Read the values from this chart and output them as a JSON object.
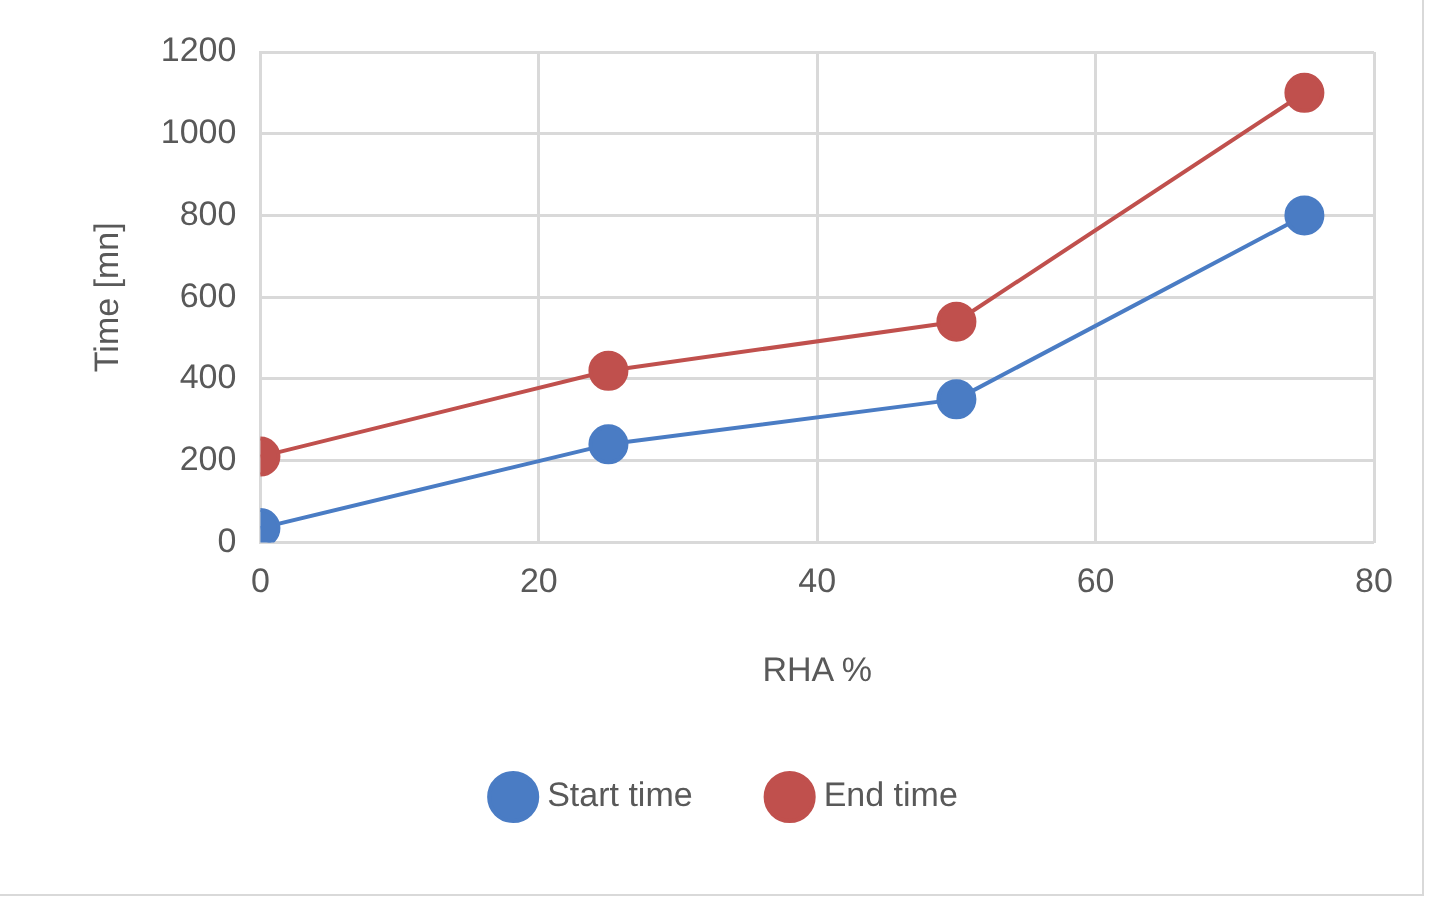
{
  "chart_data": {
    "type": "line",
    "xlabel": "RHA %",
    "ylabel": "Time [mn]",
    "xlim": [
      0,
      80
    ],
    "xticks": [
      0,
      20,
      40,
      60,
      80
    ],
    "ylim": [
      0,
      1200
    ],
    "yticks": [
      0,
      200,
      400,
      600,
      800,
      1000,
      1200
    ],
    "grid": true,
    "legend": "bottom",
    "marker": "circle",
    "line_style": "solid",
    "series": [
      {
        "name": "Start time",
        "color": "#4a7cc4",
        "x": [
          0,
          25,
          50,
          75
        ],
        "values": [
          35,
          240,
          350,
          800
        ]
      },
      {
        "name": "End time",
        "color": "#c0504d",
        "x": [
          0,
          25,
          50,
          75
        ],
        "values": [
          210,
          420,
          540,
          1100
        ]
      }
    ]
  }
}
